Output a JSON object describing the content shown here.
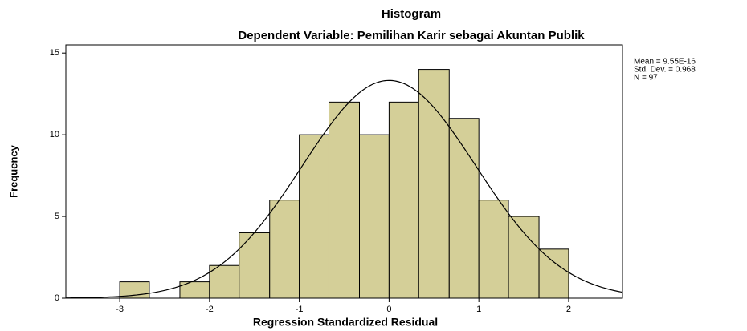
{
  "chart_data": {
    "type": "histogram",
    "title": "Histogram",
    "subtitle": "Dependent Variable: Pemilihan Karir sebagai Akuntan Publik",
    "x_label": "Regression Standardized Residual",
    "y_label": "Frequency",
    "bins": [
      -3,
      -2.67,
      -2.33,
      -2,
      -1.67,
      -1.33,
      -1,
      -0.67,
      -0.33,
      0,
      0.33,
      0.67,
      1,
      1.33,
      1.67,
      2
    ],
    "counts": [
      1,
      0,
      1,
      2,
      4,
      6,
      10,
      12,
      10,
      12,
      14,
      11,
      6,
      5,
      3
    ],
    "color": "#d4cf98",
    "xlim": [
      -3.6,
      2.6
    ],
    "xticks": [
      -3,
      -2,
      -1,
      0,
      1,
      2
    ],
    "ylim": [
      0,
      15.5
    ],
    "yticks": [
      0,
      5,
      10,
      15
    ],
    "mean": 9.55e-16,
    "std_dev": 0.968,
    "n": 97,
    "stats_labels": [
      "Mean = 9.55E-16",
      "Std. Dev. = 0.968",
      "N = 97"
    ]
  }
}
